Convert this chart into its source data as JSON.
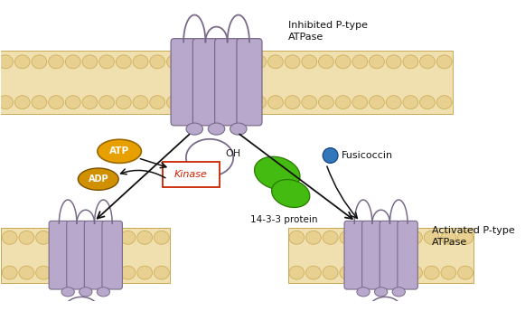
{
  "background_color": "#ffffff",
  "membrane_color": "#f0e0b0",
  "membrane_oval_color": "#e8d090",
  "membrane_oval_edge": "#c8a850",
  "protein_fill": "#b8a8cc",
  "protein_edge": "#7a6a8a",
  "arrow_color": "#111111",
  "atp_fill": "#e8a000",
  "atp_text": "#ffffff",
  "adp_fill": "#d09000",
  "adp_text": "#ffffff",
  "kinase_fill": "#ffffff",
  "kinase_edge": "#cc2200",
  "kinase_text": "#cc2200",
  "fusicoccin_fill": "#3377bb",
  "fusicoccin_text": "#222222",
  "protein143_fill": "#44bb11",
  "protein143_edge": "#2a7a00",
  "oh_text_color": "#222222",
  "label_color": "#111111",
  "title_inhibited": "Inhibited P-type\nATPase",
  "title_activated": "Activated P-type\nATPase",
  "label_atp": "ATP",
  "label_adp": "ADP",
  "label_kinase": "Kinase",
  "label_fusicoccin": "Fusicoccin",
  "label_protein143": "14-3-3 protein",
  "label_oh": "OH"
}
